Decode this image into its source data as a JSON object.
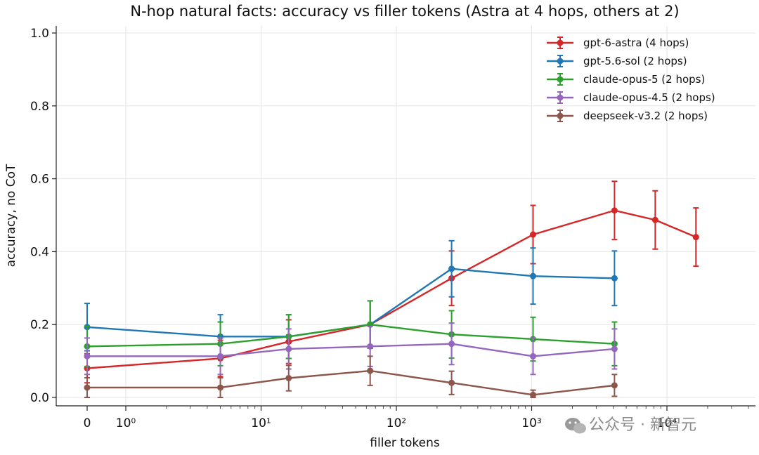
{
  "chart_data": {
    "type": "line",
    "title": "N-hop natural facts: accuracy vs filler tokens (Astra at 4 hops, others at 2)",
    "xlabel": "filler tokens",
    "ylabel": "accuracy, no CoT",
    "xscale": "symlog",
    "ylim": [
      0,
      1.0
    ],
    "yticks": [
      "0.0",
      "0.2",
      "0.4",
      "0.6",
      "0.8",
      "1.0"
    ],
    "xticks": [
      {
        "value": 0,
        "label": "0"
      },
      {
        "value": 1,
        "label": "10⁰"
      },
      {
        "value": 10,
        "label": "10¹"
      },
      {
        "value": 100,
        "label": "10²"
      },
      {
        "value": 1000,
        "label": "10³"
      },
      {
        "value": 10000,
        "label": "10⁴"
      }
    ],
    "grid": true,
    "legend_position": "top-right",
    "series": [
      {
        "name": "gpt-6-astra (4 hops)",
        "color": "#d62728",
        "x": [
          0,
          5,
          16,
          64,
          256,
          1024,
          4096,
          8192,
          16384
        ],
        "y": [
          0.08,
          0.107,
          0.153,
          0.2,
          0.327,
          0.447,
          0.513,
          0.487,
          0.44
        ],
        "err": [
          0.04,
          0.05,
          0.06,
          0.065,
          0.075,
          0.08,
          0.08,
          0.08,
          0.08
        ]
      },
      {
        "name": "gpt-5.6-sol (2 hops)",
        "color": "#1f77b4",
        "x": [
          0,
          5,
          16,
          64,
          256,
          1024,
          4096
        ],
        "y": [
          0.193,
          0.167,
          0.167,
          0.2,
          0.353,
          0.333,
          0.327
        ],
        "err": [
          0.065,
          0.06,
          0.06,
          0.065,
          0.077,
          0.077,
          0.075
        ]
      },
      {
        "name": "claude-opus-5 (2 hops)",
        "color": "#2ca02c",
        "x": [
          0,
          5,
          16,
          64,
          256,
          1024,
          4096
        ],
        "y": [
          0.14,
          0.147,
          0.167,
          0.2,
          0.173,
          0.16,
          0.147
        ],
        "err": [
          0.055,
          0.06,
          0.06,
          0.065,
          0.065,
          0.06,
          0.06
        ]
      },
      {
        "name": "claude-opus-4.5 (2 hops)",
        "color": "#9467bd",
        "x": [
          0,
          5,
          16,
          64,
          256,
          1024,
          4096
        ],
        "y": [
          0.113,
          0.113,
          0.133,
          0.14,
          0.147,
          0.113,
          0.133
        ],
        "err": [
          0.05,
          0.05,
          0.055,
          0.055,
          0.057,
          0.05,
          0.055
        ]
      },
      {
        "name": "deepseek-v3.2 (2 hops)",
        "color": "#8c564b",
        "x": [
          0,
          5,
          16,
          64,
          256,
          1024,
          4096
        ],
        "y": [
          0.027,
          0.027,
          0.053,
          0.073,
          0.04,
          0.007,
          0.033
        ],
        "err": [
          0.027,
          0.027,
          0.035,
          0.04,
          0.032,
          0.013,
          0.03
        ]
      }
    ]
  },
  "watermark": {
    "text": "公众号 · 新智元"
  }
}
